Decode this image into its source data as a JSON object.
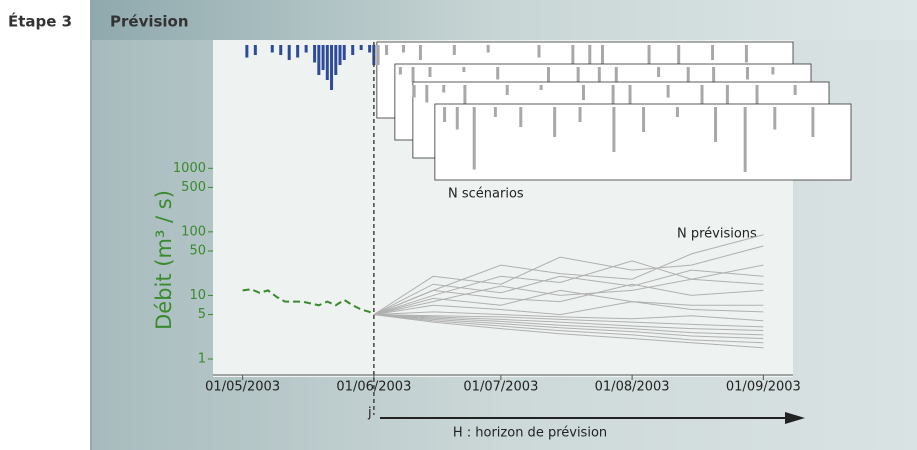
{
  "step": "Étape 3",
  "heading": "Prévision",
  "chart_data": {
    "type": "line",
    "log_y": true,
    "ylabel": "Débit (m³ / s)",
    "ylim": [
      0.56,
      97000
    ],
    "yticks": [
      1,
      5,
      10,
      50,
      100,
      500,
      1000
    ],
    "xlim": [
      "24/04/2003",
      "08/09/2003"
    ],
    "xticks": [
      "01/05/2003",
      "01/06/2003",
      "01/07/2003",
      "01/08/2003",
      "01/09/2003"
    ],
    "forecast_start": "01/06/2003",
    "annotations": {
      "scenarios": "N scénarios",
      "forecasts": "N prévisions",
      "j": "j",
      "horizon": "H : horizon de prévision"
    },
    "observed": {
      "color": "#3a8a2e",
      "x": [
        "01/05/2003",
        "03/05/2003",
        "05/05/2003",
        "07/05/2003",
        "09/05/2003",
        "11/05/2003",
        "13/05/2003",
        "15/05/2003",
        "17/05/2003",
        "19/05/2003",
        "21/05/2003",
        "23/05/2003",
        "25/05/2003",
        "27/05/2003",
        "29/05/2003",
        "31/05/2003",
        "01/06/2003"
      ],
      "values": [
        12,
        12.5,
        11,
        12,
        9.5,
        8,
        8,
        8,
        7.5,
        7,
        8,
        7,
        8.5,
        7,
        6,
        5.5,
        5
      ]
    },
    "forecast_color": "#b0b0b0",
    "forecast_x": [
      "01/06/2003",
      "15/06/2003",
      "01/07/2003",
      "15/07/2003",
      "01/08/2003",
      "15/08/2003",
      "01/09/2003"
    ],
    "forecasts": [
      {
        "values": [
          5,
          3.8,
          3,
          2.5,
          2.1,
          1.8,
          1.5
        ]
      },
      {
        "values": [
          5,
          4,
          3.3,
          2.8,
          2.4,
          2,
          1.8
        ]
      },
      {
        "values": [
          5,
          4.2,
          3.6,
          3.1,
          2.7,
          2.3,
          2.1
        ]
      },
      {
        "values": [
          5,
          4.4,
          3.9,
          3.4,
          3,
          2.6,
          2.4
        ]
      },
      {
        "values": [
          5,
          4.6,
          4.2,
          3.8,
          3.3,
          3,
          2.8
        ]
      },
      {
        "values": [
          5,
          4.8,
          4.6,
          4.2,
          3.8,
          3.5,
          3.2
        ]
      },
      {
        "values": [
          5,
          5.5,
          5,
          4.6,
          4.3,
          4.8,
          4
        ]
      },
      {
        "values": [
          5,
          7,
          6,
          5,
          8,
          6,
          5.5
        ]
      },
      {
        "values": [
          5,
          9,
          7,
          12,
          8,
          7,
          7
        ]
      },
      {
        "values": [
          5,
          12,
          9,
          8,
          15,
          10,
          12
        ]
      },
      {
        "values": [
          5,
          8,
          14,
          10,
          12,
          18,
          15
        ]
      },
      {
        "values": [
          5,
          15,
          11,
          20,
          14,
          25,
          20
        ]
      },
      {
        "values": [
          5,
          10,
          20,
          16,
          35,
          18,
          30
        ]
      },
      {
        "values": [
          5,
          20,
          15,
          40,
          25,
          30,
          60
        ]
      },
      {
        "values": [
          5,
          12,
          30,
          22,
          18,
          45,
          90
        ]
      }
    ],
    "rain_observed": {
      "color": "#2e4a9a",
      "x": [
        "02/05/2003",
        "04/05/2003",
        "08/05/2003",
        "10/05/2003",
        "12/05/2003",
        "14/05/2003",
        "16/05/2003",
        "18/05/2003",
        "19/05/2003",
        "20/05/2003",
        "21/05/2003",
        "22/05/2003",
        "23/05/2003",
        "24/05/2003",
        "25/05/2003",
        "27/05/2003",
        "29/05/2003",
        "31/05/2003",
        "01/06/2003"
      ],
      "values": [
        5,
        4,
        3,
        4,
        6,
        5,
        3,
        7,
        12,
        10,
        14,
        18,
        12,
        8,
        6,
        4,
        2,
        3,
        8
      ]
    },
    "rain_scenario_color": "#a8a8a8",
    "rain_scenarios": [
      {
        "x": [
          "02/06/2003",
          "04/06/2003",
          "08/06/2003",
          "12/06/2003",
          "20/06/2003",
          "28/06/2003",
          "10/07/2003",
          "18/07/2003",
          "22/07/2003",
          "25/07/2003",
          "05/08/2003",
          "12/08/2003",
          "20/08/2003",
          "28/08/2003"
        ],
        "values": [
          8,
          4,
          3,
          6,
          4,
          3,
          5,
          10,
          14,
          9,
          8,
          12,
          6,
          7
        ]
      },
      {
        "x": [
          "03/06/2003",
          "06/06/2003",
          "10/06/2003",
          "18/06/2003",
          "26/06/2003",
          "08/07/2003",
          "15/07/2003",
          "20/07/2003",
          "24/07/2003",
          "03/08/2003",
          "10/08/2003",
          "16/08/2003",
          "24/08/2003",
          "30/08/2003"
        ],
        "values": [
          3,
          6,
          4,
          2,
          5,
          8,
          12,
          10,
          6,
          4,
          9,
          11,
          5,
          3
        ]
      },
      {
        "x": [
          "02/06/2003",
          "05/06/2003",
          "09/06/2003",
          "14/06/2003",
          "24/06/2003",
          "02/07/2003",
          "12/07/2003",
          "19/07/2003",
          "23/07/2003",
          "01/08/2003",
          "09/08/2003",
          "15/08/2003",
          "22/08/2003",
          "31/08/2003"
        ],
        "values": [
          5,
          7,
          3,
          9,
          4,
          2,
          6,
          15,
          11,
          5,
          10,
          8,
          12,
          4
        ]
      },
      {
        "x": [
          "04/06/2003",
          "07/06/2003",
          "11/06/2003",
          "16/06/2003",
          "22/06/2003",
          "30/06/2003",
          "06/07/2003",
          "14/07/2003",
          "21/07/2003",
          "29/07/2003",
          "07/08/2003",
          "14/08/2003",
          "21/08/2003",
          "30/08/2003"
        ],
        "values": [
          6,
          9,
          25,
          4,
          8,
          12,
          6,
          18,
          10,
          4,
          14,
          26,
          9,
          12
        ]
      }
    ]
  }
}
